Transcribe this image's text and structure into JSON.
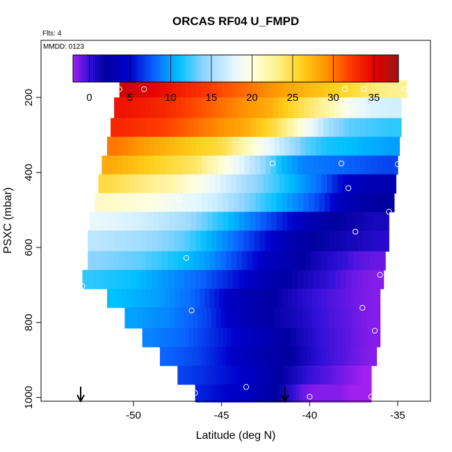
{
  "chart_data": {
    "type": "heatmap",
    "title": "ORCAS RF04 U_FMPD",
    "flights_note": "Flts: 4",
    "date_note": "MMDD: 0123",
    "xlabel": "Latitude (deg N)",
    "ylabel": "PSXC (mbar)",
    "xlim": [
      -54.5,
      -33.1
    ],
    "ylim": [
      1010,
      70
    ],
    "y_inverted": true,
    "x_ticks": [
      -50,
      -45,
      -40,
      -35
    ],
    "x_tick_labels": [
      "-50",
      "-45",
      "-40",
      "-35"
    ],
    "y_ticks": [
      200,
      400,
      600,
      800,
      1000
    ],
    "y_tick_labels": [
      "200",
      "400",
      "600",
      "800",
      "1000"
    ],
    "colorbar": {
      "min": -2,
      "max": 38,
      "ticks": [
        0,
        5,
        10,
        15,
        20,
        25,
        30,
        35
      ],
      "tick_labels": [
        "0",
        "5",
        "10",
        "15",
        "20",
        "25",
        "30",
        "35"
      ],
      "stops": [
        {
          "v": -2,
          "c": "#a020f0"
        },
        {
          "v": 0,
          "c": "#3010d8"
        },
        {
          "v": 2,
          "c": "#0000a0"
        },
        {
          "v": 5,
          "c": "#0000cc"
        },
        {
          "v": 8,
          "c": "#0a64ff"
        },
        {
          "v": 11,
          "c": "#00c0ff"
        },
        {
          "v": 14,
          "c": "#8cd4ff"
        },
        {
          "v": 18,
          "c": "#e8f8ff"
        },
        {
          "v": 20,
          "c": "#ffffe0"
        },
        {
          "v": 23,
          "c": "#fff090"
        },
        {
          "v": 26,
          "c": "#ffd21e"
        },
        {
          "v": 29,
          "c": "#ff9600"
        },
        {
          "v": 32,
          "c": "#ff3c00"
        },
        {
          "v": 35,
          "c": "#e60000"
        },
        {
          "v": 38,
          "c": "#9a1414"
        }
      ]
    },
    "rows": [
      {
        "p": 175,
        "pt": 155,
        "pb": 200,
        "x0": -50.8,
        "x1": -34.5,
        "v": [
          36,
          35,
          34,
          33,
          32,
          31,
          30,
          29,
          28,
          27,
          26,
          25,
          23.5,
          23
        ]
      },
      {
        "p": 225,
        "pt": 200,
        "pb": 255,
        "x0": -51.1,
        "x1": -34.8,
        "v": [
          34,
          33.5,
          33,
          32,
          31,
          30,
          29,
          28,
          26,
          24,
          22,
          19,
          17.5,
          17
        ]
      },
      {
        "p": 275,
        "pt": 255,
        "pb": 305,
        "x0": -51.3,
        "x1": -34.8,
        "v": [
          33,
          32.5,
          32,
          31,
          30,
          29,
          28,
          26,
          23,
          19,
          15,
          13,
          12.5,
          12
        ]
      },
      {
        "p": 325,
        "pt": 305,
        "pb": 355,
        "x0": -51.5,
        "x1": -34.9,
        "v": [
          30,
          29,
          28,
          27,
          26,
          25,
          22,
          19,
          16,
          13,
          11.5,
          11,
          10.5,
          10
        ]
      },
      {
        "p": 375,
        "pt": 355,
        "pb": 405,
        "x0": -51.8,
        "x1": -35.0,
        "v": [
          28,
          27,
          26,
          25,
          24,
          21,
          18,
          15,
          11,
          9,
          8.5,
          8,
          7.5,
          7
        ]
      },
      {
        "p": 425,
        "pt": 405,
        "pb": 455,
        "x0": -52.0,
        "x1": -35.1,
        "v": [
          25,
          24,
          23,
          22,
          20,
          18,
          16,
          14,
          12,
          10,
          8,
          5,
          3.5,
          3
        ]
      },
      {
        "p": 475,
        "pt": 455,
        "pb": 505,
        "x0": -52.2,
        "x1": -35.2,
        "v": [
          21,
          20.5,
          20,
          19,
          18,
          17,
          15,
          13,
          11,
          9,
          7,
          4,
          2.5,
          2
        ]
      },
      {
        "p": 530,
        "pt": 505,
        "pb": 555,
        "x0": -52.5,
        "x1": -35.5,
        "v": [
          18,
          17.5,
          17,
          16,
          15,
          13,
          11,
          9,
          7,
          5,
          3,
          2,
          1.5,
          1
        ]
      },
      {
        "p": 580,
        "pt": 555,
        "pb": 610,
        "x0": -52.6,
        "x1": -35.5,
        "v": [
          16,
          15.5,
          15,
          14,
          13,
          11,
          9,
          7,
          5,
          3,
          2,
          1.5,
          1,
          0.5
        ]
      },
      {
        "p": 635,
        "pt": 610,
        "pb": 660,
        "x0": -52.6,
        "x1": -35.7,
        "v": [
          14,
          13.5,
          13,
          12,
          11,
          10,
          8,
          6,
          4,
          3,
          1.5,
          0.5,
          -0.5,
          -1
        ]
      },
      {
        "p": 685,
        "pt": 660,
        "pb": 710,
        "x0": -52.9,
        "x1": -35.8,
        "v": [
          12,
          11.5,
          11,
          10,
          9,
          8,
          6.5,
          5,
          3.5,
          2,
          1,
          0,
          -1,
          -1.5
        ]
      },
      {
        "p": 735,
        "pt": 710,
        "pb": 760,
        "x0": -51.5,
        "x1": -36.0,
        "v": [
          11,
          10.5,
          10,
          9,
          8,
          6,
          4,
          3,
          2,
          1,
          0,
          -0.5,
          -1,
          -1.5
        ]
      },
      {
        "p": 785,
        "pt": 760,
        "pb": 815,
        "x0": -50.5,
        "x1": -36.0,
        "v": [
          10,
          9.5,
          9,
          8,
          7,
          5,
          3.5,
          2.5,
          1.5,
          1,
          0,
          -0.5,
          -1,
          -1.5
        ]
      },
      {
        "p": 840,
        "pt": 815,
        "pb": 865,
        "x0": -49.5,
        "x1": -36.0,
        "v": [
          9,
          8.5,
          8,
          7,
          6,
          5,
          4,
          3,
          2,
          1,
          0,
          -0.5,
          -1,
          -1.5
        ]
      },
      {
        "p": 890,
        "pt": 865,
        "pb": 915,
        "x0": -48.5,
        "x1": -36.2,
        "v": [
          8,
          7.5,
          7,
          6,
          5,
          4,
          3,
          2.5,
          2,
          1,
          0,
          -0.5,
          -1,
          -1.5
        ]
      },
      {
        "p": 940,
        "pt": 915,
        "pb": 965,
        "x0": -47.5,
        "x1": -36.5,
        "v": [
          7,
          6.5,
          6,
          5.5,
          5,
          4,
          3,
          2,
          1,
          0,
          -0.5,
          -1,
          -1.5,
          -2
        ]
      },
      {
        "p": 990,
        "pt": 965,
        "pb": 1012,
        "x0": -46.5,
        "x1": -36.5,
        "v": [
          6,
          5.5,
          5,
          4.5,
          4,
          3,
          2,
          0.5,
          -1,
          -1.5,
          -1.5,
          -1.5,
          -2,
          -2
        ]
      }
    ],
    "markers": [
      {
        "x": -50.8,
        "y": 178
      },
      {
        "x": -49.4,
        "y": 178
      },
      {
        "x": -38.0,
        "y": 178
      },
      {
        "x": -36.9,
        "y": 178
      },
      {
        "x": -34.6,
        "y": 178
      },
      {
        "x": -42.1,
        "y": 376
      },
      {
        "x": -38.2,
        "y": 376
      },
      {
        "x": -35.0,
        "y": 378
      },
      {
        "x": -37.8,
        "y": 442
      },
      {
        "x": -47.4,
        "y": 470
      },
      {
        "x": -35.5,
        "y": 505
      },
      {
        "x": -37.4,
        "y": 558
      },
      {
        "x": -47.0,
        "y": 628
      },
      {
        "x": -36.0,
        "y": 673
      },
      {
        "x": -52.9,
        "y": 703
      },
      {
        "x": -46.7,
        "y": 768
      },
      {
        "x": -37.0,
        "y": 761
      },
      {
        "x": -36.3,
        "y": 822
      },
      {
        "x": -43.6,
        "y": 972
      },
      {
        "x": -46.5,
        "y": 988
      },
      {
        "x": -40.0,
        "y": 998
      },
      {
        "x": -36.5,
        "y": 998
      }
    ],
    "arrows": [
      {
        "x": -53.0
      },
      {
        "x": -41.4
      }
    ]
  }
}
